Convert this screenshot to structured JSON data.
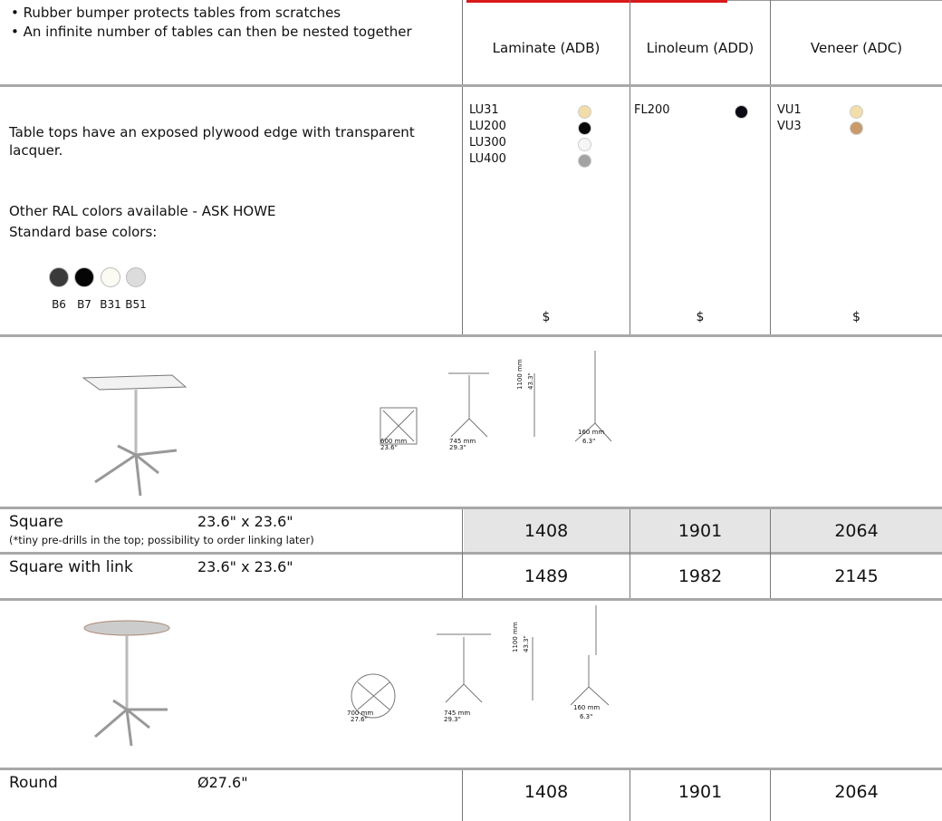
{
  "header": {
    "features": [
      "Rubber bumper protects tables from scratches",
      "An infinite number of tables can then be nested together"
    ],
    "columns": [
      "Laminate (ADB)",
      "Linoleum (ADD)",
      "Veneer (ADC)"
    ]
  },
  "finishes": {
    "description": "Table tops have an exposed plywood edge with transparent lacquer.",
    "ral_note": "Other RAL colors available - ASK HOWE",
    "base_label": "Standard base colors:",
    "base_colors": [
      {
        "code": "B6",
        "color": "#3a3a3a"
      },
      {
        "code": "B7",
        "color": "#050505"
      },
      {
        "code": "B31",
        "color": "#fbfbf3"
      },
      {
        "code": "B51",
        "color": "#dcdcdc"
      }
    ],
    "tops": [
      [
        {
          "code": "LU31",
          "color": "#f2dca8"
        },
        {
          "code": "LU200",
          "color": "#080808"
        },
        {
          "code": "LU300",
          "color": "#f6f6f6"
        },
        {
          "code": "LU400",
          "color": "#a3a3a3"
        }
      ],
      [
        {
          "code": "FL200",
          "color": "#0a0a14"
        }
      ],
      [
        {
          "code": "VU1",
          "color": "#f3deaa"
        },
        {
          "code": "VU3",
          "color": "#c99a6a"
        }
      ]
    ],
    "price_marks": [
      "$",
      "$",
      "$"
    ]
  },
  "drawings": [
    {
      "dims": [
        "600 mm",
        "23.6\"",
        "745 mm",
        "29.3\"",
        "1100 mm",
        "43.3\"",
        "160 mm",
        "6.3\""
      ]
    },
    {
      "dims": [
        "700 mm",
        "27.6\"",
        "745 mm",
        "29.3\"",
        "1100 mm",
        "43.3\"",
        "160 mm",
        "6.3\""
      ]
    }
  ],
  "products": [
    {
      "name": "Square",
      "size": "23.6\" x 23.6\"",
      "note": "(*tiny pre-drills in the top; possibility to order linking later)",
      "prices": [
        1408,
        1901,
        2064
      ]
    },
    {
      "name": "Square with link",
      "size": "23.6\" x 23.6\"",
      "prices": [
        1489,
        1982,
        2145
      ]
    },
    {
      "name": "Round",
      "size": "Ø27.6\"",
      "prices": [
        1408,
        1901,
        2064
      ]
    }
  ]
}
